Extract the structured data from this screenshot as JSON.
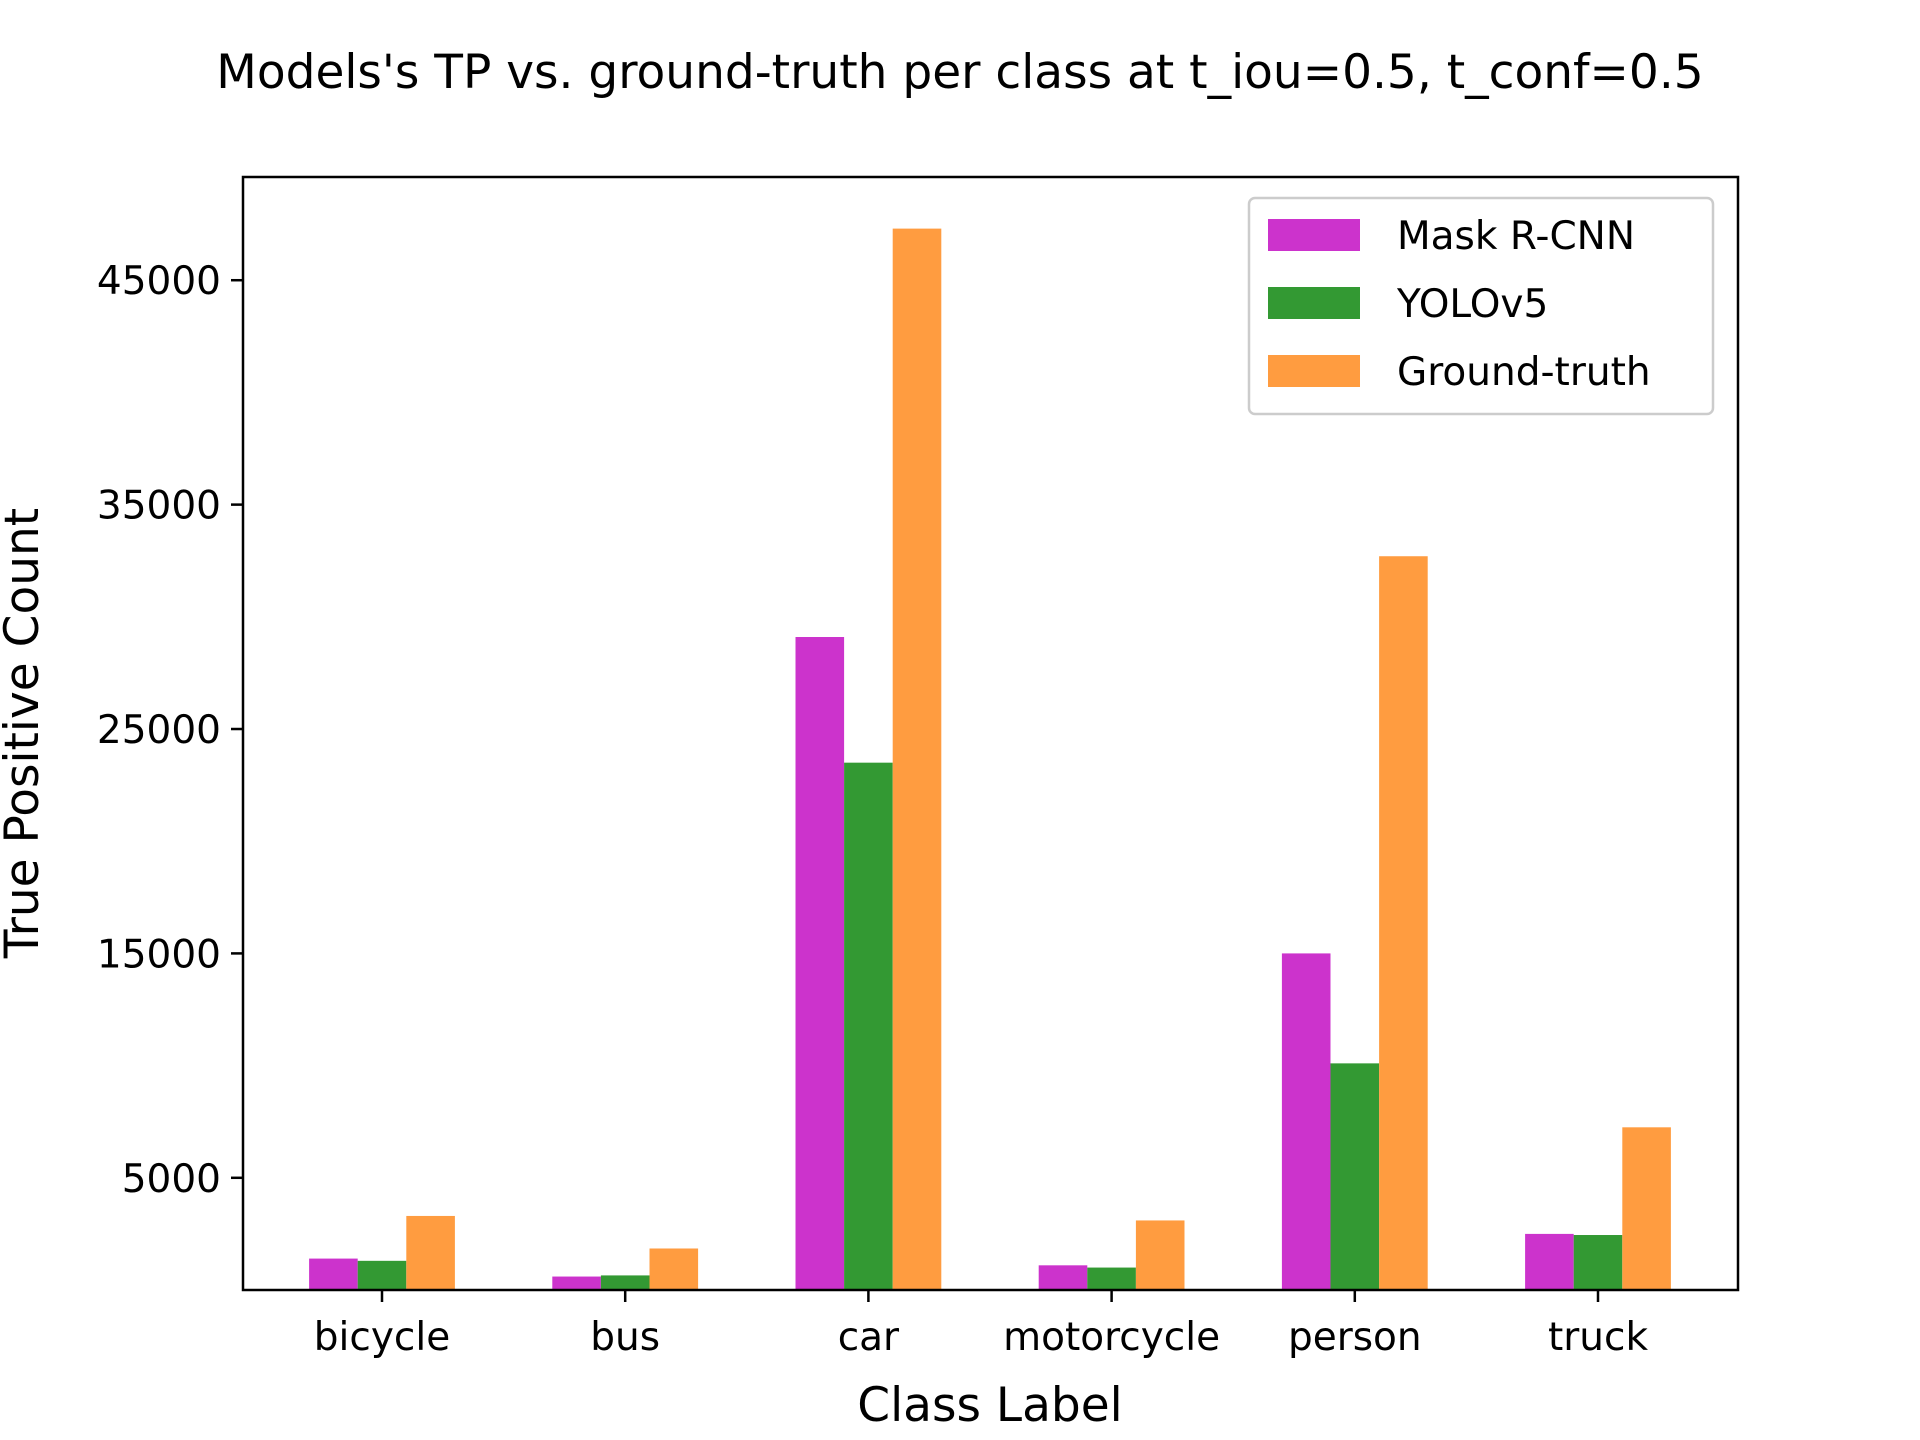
{
  "chart_data": {
    "type": "bar",
    "title": "Models's TP vs. ground-truth per class at t_iou=0.5, t_conf=0.5",
    "xlabel": "Class Label",
    "ylabel": "True Positive Count",
    "categories": [
      "bicycle",
      "bus",
      "car",
      "motorcycle",
      "person",
      "truck"
    ],
    "series": [
      {
        "name": "Mask R-CNN",
        "color": "#cc33cc",
        "values": [
          1400,
          600,
          29100,
          1100,
          15000,
          2500
        ]
      },
      {
        "name": "YOLOv5",
        "color": "#339933",
        "values": [
          1300,
          650,
          23500,
          1000,
          10100,
          2450
        ]
      },
      {
        "name": "Ground-truth",
        "color": "#ff9c40",
        "values": [
          3300,
          1850,
          47300,
          3100,
          32700,
          7250
        ]
      }
    ],
    "yticks": [
      5000,
      15000,
      25000,
      35000,
      45000
    ],
    "ylim": [
      0,
      49600
    ],
    "legend": "top-right",
    "grid": false
  }
}
